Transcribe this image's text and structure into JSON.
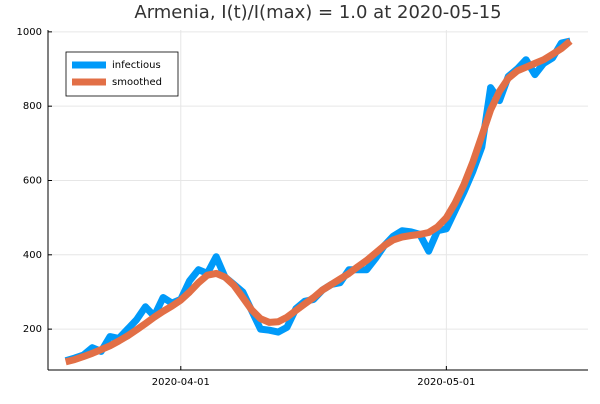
{
  "chart_data": {
    "type": "line",
    "title": "Armenia,  I(t)/I(max) = 1.0 at 2020-05-15",
    "x": [
      "2020-03-19",
      "2020-03-20",
      "2020-03-21",
      "2020-03-22",
      "2020-03-23",
      "2020-03-24",
      "2020-03-25",
      "2020-03-26",
      "2020-03-27",
      "2020-03-28",
      "2020-03-29",
      "2020-03-30",
      "2020-03-31",
      "2020-04-01",
      "2020-04-02",
      "2020-04-03",
      "2020-04-04",
      "2020-04-05",
      "2020-04-06",
      "2020-04-07",
      "2020-04-08",
      "2020-04-09",
      "2020-04-10",
      "2020-04-11",
      "2020-04-12",
      "2020-04-13",
      "2020-04-14",
      "2020-04-15",
      "2020-04-16",
      "2020-04-17",
      "2020-04-18",
      "2020-04-19",
      "2020-04-20",
      "2020-04-21",
      "2020-04-22",
      "2020-04-23",
      "2020-04-24",
      "2020-04-25",
      "2020-04-26",
      "2020-04-27",
      "2020-04-28",
      "2020-04-29",
      "2020-04-30",
      "2020-05-01",
      "2020-05-02",
      "2020-05-03",
      "2020-05-04",
      "2020-05-05",
      "2020-05-06",
      "2020-05-07",
      "2020-05-08",
      "2020-05-09",
      "2020-05-10",
      "2020-05-11",
      "2020-05-12",
      "2020-05-13",
      "2020-05-14",
      "2020-05-15"
    ],
    "series": [
      {
        "name": "infectious",
        "color": "#009af9",
        "values": [
          115,
          122,
          130,
          150,
          140,
          180,
          175,
          200,
          225,
          260,
          235,
          285,
          270,
          280,
          330,
          360,
          350,
          395,
          340,
          320,
          300,
          250,
          200,
          197,
          192,
          205,
          255,
          275,
          280,
          305,
          320,
          325,
          360,
          360,
          360,
          390,
          425,
          450,
          465,
          462,
          455,
          410,
          465,
          470,
          520,
          570,
          625,
          690,
          850,
          815,
          880,
          900,
          925,
          885,
          915,
          930,
          970,
          975
        ]
      },
      {
        "name": "smoothed",
        "color": "#e26f46",
        "values": [
          112,
          118,
          126,
          135,
          145,
          155,
          168,
          182,
          198,
          215,
          232,
          248,
          262,
          278,
          300,
          325,
          345,
          350,
          340,
          318,
          285,
          252,
          228,
          218,
          220,
          232,
          250,
          268,
          285,
          305,
          320,
          335,
          350,
          368,
          385,
          405,
          425,
          440,
          448,
          452,
          455,
          460,
          475,
          500,
          540,
          590,
          650,
          720,
          790,
          840,
          875,
          895,
          905,
          915,
          925,
          940,
          955,
          975
        ]
      }
    ],
    "xlim": [
      "2020-03-17",
      "2020-05-17"
    ],
    "xticks": [
      "2020-04-01",
      "2020-05-01"
    ],
    "ylim": [
      90,
      1005
    ],
    "yticks": [
      200,
      400,
      600,
      800,
      1000
    ],
    "grid": true,
    "legend": "top-left"
  }
}
